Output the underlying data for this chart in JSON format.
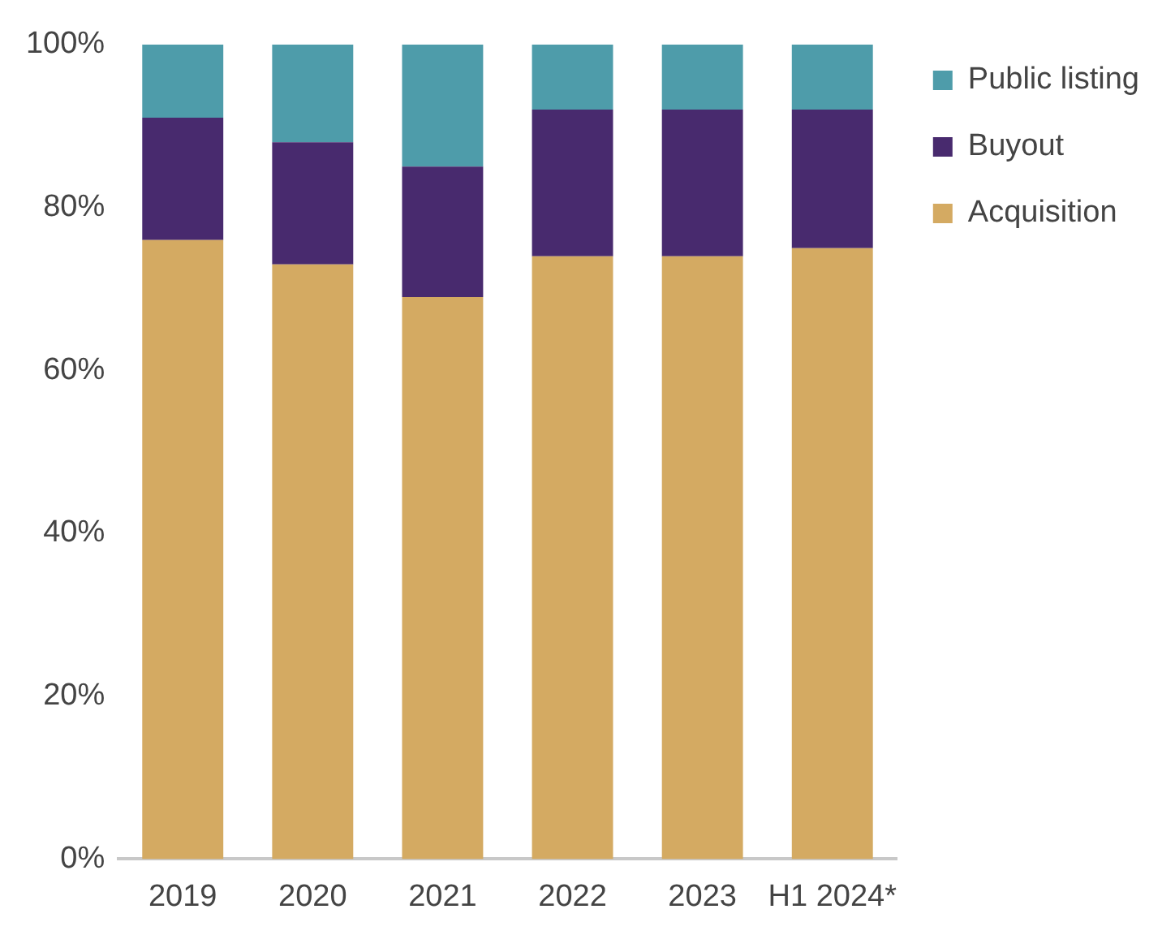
{
  "chart_data": {
    "type": "bar",
    "stacked": true,
    "categories": [
      "2019",
      "2020",
      "2021",
      "2022",
      "2023",
      "H1 2024*"
    ],
    "series": [
      {
        "name": "Acquisition",
        "color": "#d4aa62",
        "values": [
          76,
          73,
          69,
          74,
          74,
          75
        ]
      },
      {
        "name": "Buyout",
        "color": "#482a6e",
        "values": [
          15,
          15,
          16,
          18,
          18,
          17
        ]
      },
      {
        "name": "Public listing",
        "color": "#4e9caa",
        "values": [
          9,
          12,
          15,
          8,
          8,
          8
        ]
      }
    ],
    "ylim": [
      0,
      100
    ],
    "yticks": [
      {
        "value": 0,
        "label": "0%"
      },
      {
        "value": 20,
        "label": "20%"
      },
      {
        "value": 40,
        "label": "40%"
      },
      {
        "value": 60,
        "label": "60%"
      },
      {
        "value": 80,
        "label": "80%"
      },
      {
        "value": 100,
        "label": "100%"
      }
    ],
    "grid": false,
    "legend": "top right"
  }
}
